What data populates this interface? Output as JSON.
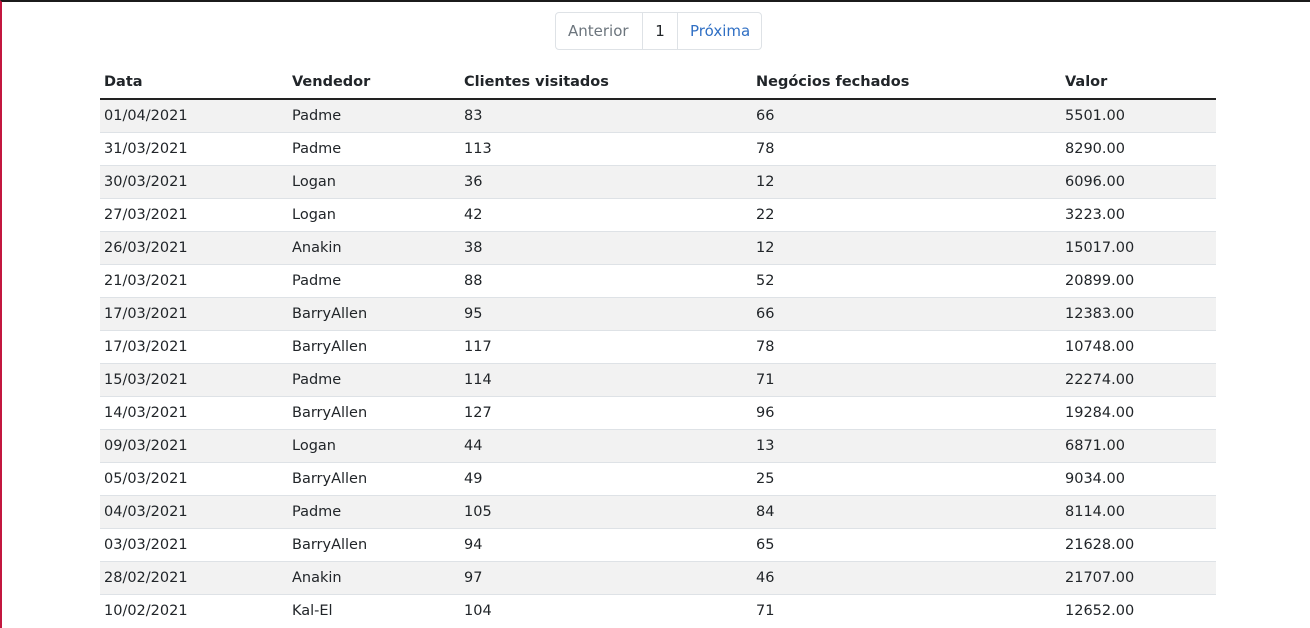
{
  "pagination": {
    "previous": "Anterior",
    "page": "1",
    "next": "Próxima"
  },
  "table": {
    "headers": {
      "date": "Data",
      "seller": "Vendedor",
      "visited": "Clientes visitados",
      "deals": "Negócios fechados",
      "amount": "Valor"
    },
    "rows": [
      {
        "date": "01/04/2021",
        "seller": "Padme",
        "visited": "83",
        "deals": "66",
        "amount": "5501.00"
      },
      {
        "date": "31/03/2021",
        "seller": "Padme",
        "visited": "113",
        "deals": "78",
        "amount": "8290.00"
      },
      {
        "date": "30/03/2021",
        "seller": "Logan",
        "visited": "36",
        "deals": "12",
        "amount": "6096.00"
      },
      {
        "date": "27/03/2021",
        "seller": "Logan",
        "visited": "42",
        "deals": "22",
        "amount": "3223.00"
      },
      {
        "date": "26/03/2021",
        "seller": "Anakin",
        "visited": "38",
        "deals": "12",
        "amount": "15017.00"
      },
      {
        "date": "21/03/2021",
        "seller": "Padme",
        "visited": "88",
        "deals": "52",
        "amount": "20899.00"
      },
      {
        "date": "17/03/2021",
        "seller": "BarryAllen",
        "visited": "95",
        "deals": "66",
        "amount": "12383.00"
      },
      {
        "date": "17/03/2021",
        "seller": "BarryAllen",
        "visited": "117",
        "deals": "78",
        "amount": "10748.00"
      },
      {
        "date": "15/03/2021",
        "seller": "Padme",
        "visited": "114",
        "deals": "71",
        "amount": "22274.00"
      },
      {
        "date": "14/03/2021",
        "seller": "BarryAllen",
        "visited": "127",
        "deals": "96",
        "amount": "19284.00"
      },
      {
        "date": "09/03/2021",
        "seller": "Logan",
        "visited": "44",
        "deals": "13",
        "amount": "6871.00"
      },
      {
        "date": "05/03/2021",
        "seller": "BarryAllen",
        "visited": "49",
        "deals": "25",
        "amount": "9034.00"
      },
      {
        "date": "04/03/2021",
        "seller": "Padme",
        "visited": "105",
        "deals": "84",
        "amount": "8114.00"
      },
      {
        "date": "03/03/2021",
        "seller": "BarryAllen",
        "visited": "94",
        "deals": "65",
        "amount": "21628.00"
      },
      {
        "date": "28/02/2021",
        "seller": "Anakin",
        "visited": "97",
        "deals": "46",
        "amount": "21707.00"
      },
      {
        "date": "10/02/2021",
        "seller": "Kal-El",
        "visited": "104",
        "deals": "71",
        "amount": "12652.00"
      }
    ]
  }
}
